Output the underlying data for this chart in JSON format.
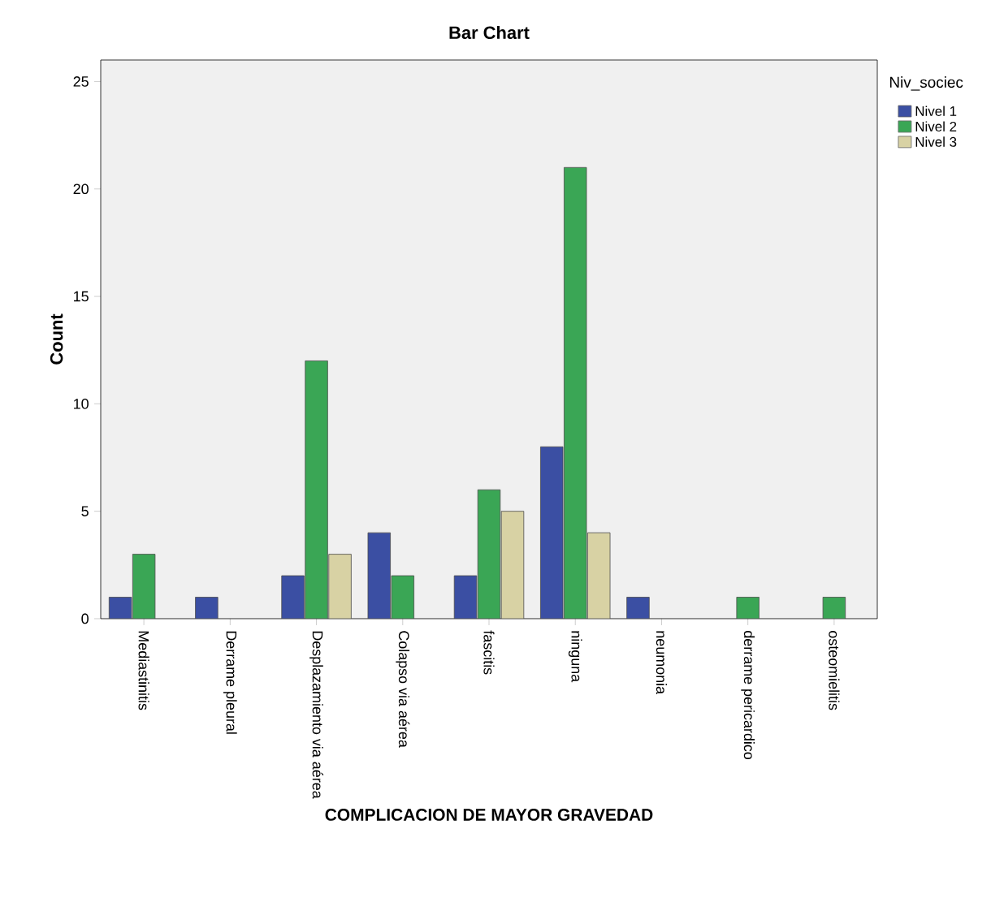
{
  "chart_data": {
    "type": "bar",
    "title": "Bar Chart",
    "xlabel": "COMPLICACION DE MAYOR GRAVEDAD",
    "ylabel": "Count",
    "legend_title": "Niv_sociec",
    "categories": [
      "Mediastinitis",
      "Derrame pleural",
      "Desplazamiento via aérea",
      "Colapso via aérea",
      "fascitis",
      "ninguna",
      "neumonia",
      "derrame pericardico",
      "osteomielitis"
    ],
    "series": [
      {
        "name": "Nivel 1",
        "color": "#3b4fa3",
        "values": [
          1,
          1,
          2,
          4,
          2,
          8,
          1,
          null,
          null
        ]
      },
      {
        "name": "Nivel 2",
        "color": "#3aa655",
        "values": [
          3,
          null,
          12,
          2,
          6,
          21,
          null,
          1,
          1
        ]
      },
      {
        "name": "Nivel 3",
        "color": "#d8d2a4",
        "values": [
          null,
          null,
          3,
          null,
          5,
          4,
          null,
          null,
          null
        ]
      }
    ],
    "ylim": [
      0,
      26
    ],
    "yticks": [
      0,
      5,
      10,
      15,
      20,
      25
    ],
    "grid": false,
    "legend": "right"
  }
}
